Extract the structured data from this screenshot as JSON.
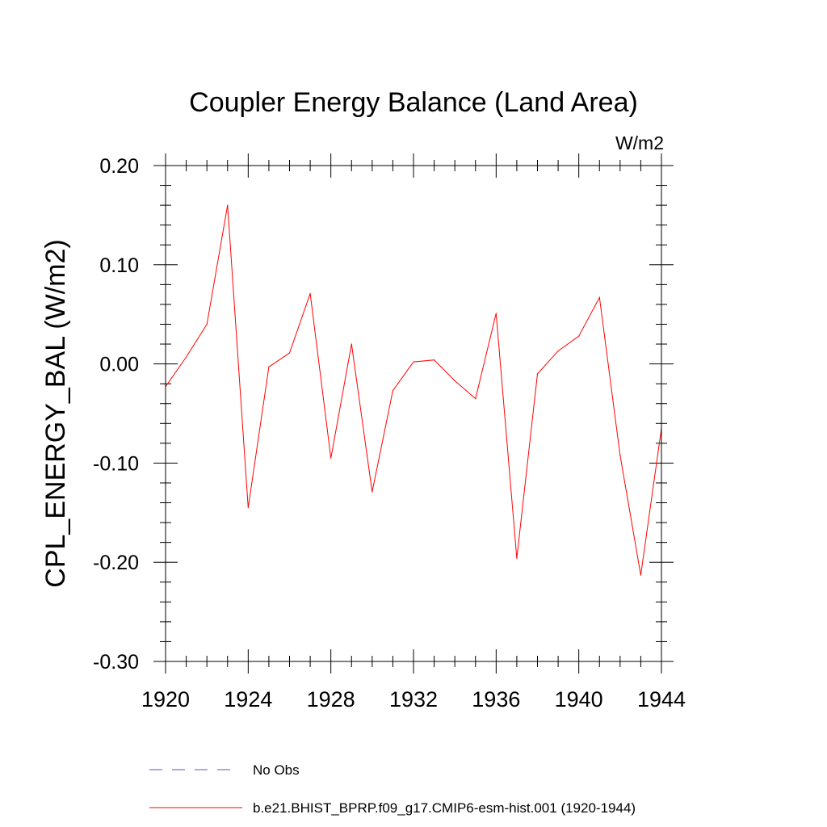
{
  "chart_data": {
    "type": "line",
    "title": "Coupler Energy Balance (Land Area)",
    "units_label": "W/m2",
    "xlabel": "",
    "ylabel": "CPL_ENERGY_BAL  (W/m2)",
    "xlim": [
      1920,
      1944
    ],
    "ylim": [
      -0.3,
      0.2
    ],
    "x_ticks": [
      "1920",
      "1924",
      "1928",
      "1932",
      "1936",
      "1940",
      "1944"
    ],
    "y_ticks": [
      "0.20",
      "0.10",
      "0.00",
      "-0.10",
      "-0.20",
      "-0.30"
    ],
    "grid": false,
    "legend_position": "bottom",
    "series": [
      {
        "name": "b.e21.BHIST_BPRP.f09_g17.CMIP6-esm-hist.001 (1920-1944)",
        "color": "#ff0000",
        "style": "solid",
        "x": [
          1920,
          1921,
          1922,
          1923,
          1924,
          1925,
          1926,
          1927,
          1928,
          1929,
          1930,
          1931,
          1932,
          1933,
          1934,
          1935,
          1936,
          1937,
          1938,
          1939,
          1940,
          1941,
          1942,
          1943,
          1944
        ],
        "y": [
          -0.023,
          0.007,
          0.04,
          0.16,
          -0.145,
          -0.003,
          0.011,
          0.071,
          -0.095,
          0.02,
          -0.129,
          -0.027,
          0.002,
          0.004,
          -0.017,
          -0.035,
          0.051,
          -0.196,
          -0.01,
          0.013,
          0.028,
          0.067,
          -0.092,
          -0.213,
          -0.065
        ]
      }
    ],
    "legend": [
      {
        "label": "No Obs",
        "color": "#5555cc",
        "style": "dashed"
      },
      {
        "label": "b.e21.BHIST_BPRP.f09_g17.CMIP6-esm-hist.001 (1920-1944)",
        "color": "#ff0000",
        "style": "solid"
      }
    ]
  }
}
